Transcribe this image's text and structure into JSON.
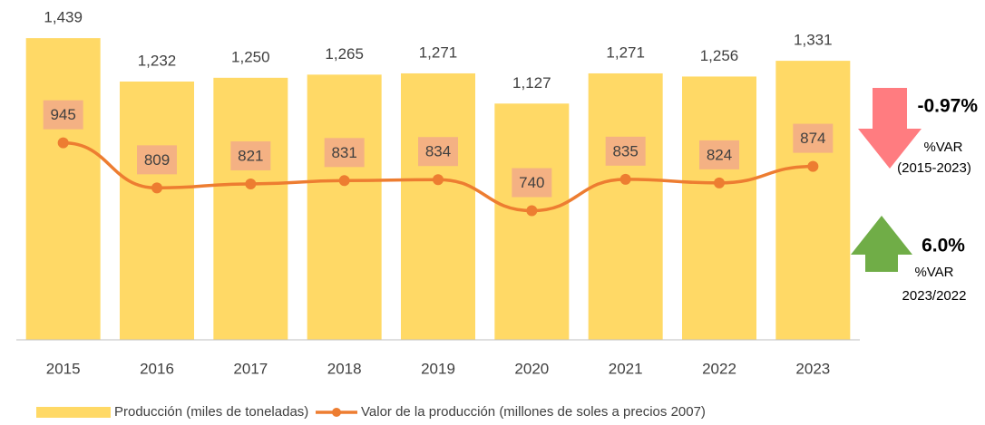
{
  "chart_data": {
    "type": "combo",
    "categories": [
      "2015",
      "2016",
      "2017",
      "2018",
      "2019",
      "2020",
      "2021",
      "2022",
      "2023"
    ],
    "series": [
      {
        "name": "Producción (miles de toneladas)",
        "type": "bar",
        "color": "#FFD966",
        "values": [
          1439,
          1232,
          1250,
          1265,
          1271,
          1127,
          1271,
          1256,
          1331
        ],
        "value_labels": [
          "1,439",
          "1,232",
          "1,250",
          "1,265",
          "1,271",
          "1,127",
          "1,271",
          "1,256",
          "1,331"
        ]
      },
      {
        "name": "Valor de la producción (millones de soles a precios 2007)",
        "type": "line",
        "axis": "y2",
        "color": "#ED7D31",
        "values": [
          945,
          809,
          821,
          831,
          834,
          740,
          835,
          824,
          874
        ]
      }
    ],
    "ylim": [
      0,
      1500
    ],
    "y2lim": [
      350,
      1300
    ],
    "annotations": [
      {
        "text": "-0.97%",
        "label": "%VAR",
        "period": "(2015-2023)"
      },
      {
        "text": "6.0%",
        "label": "%VAR",
        "period": "2023/2022"
      }
    ],
    "legend": "bottom"
  }
}
